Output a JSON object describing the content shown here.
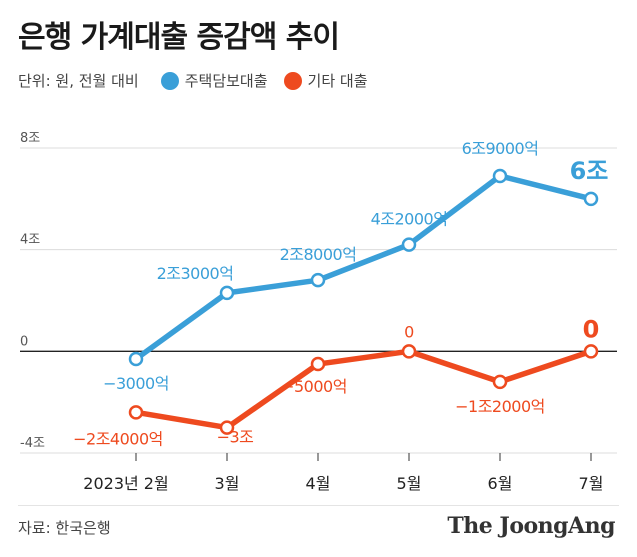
{
  "title": "은행 가계대출 증감액 추이",
  "unit_label": "단위: 원, 전월 대비",
  "legend": [
    {
      "label": "주택담보대출",
      "color": "#3a9fd8"
    },
    {
      "label": "기타 대출",
      "color": "#ee4a1f"
    }
  ],
  "source": "자료: 한국은행",
  "brand": "The JoongAng",
  "chart_data": {
    "type": "line",
    "categories": [
      "2023년 2월",
      "3월",
      "4월",
      "5월",
      "6월",
      "7월"
    ],
    "ylim": [
      -4,
      8
    ],
    "yticks": [
      8,
      4,
      0,
      -4
    ],
    "ytick_labels": [
      "8조",
      "4조",
      "0",
      "-4조"
    ],
    "grid": true,
    "series": [
      {
        "name": "주택담보대출",
        "color": "#3a9fd8",
        "values": [
          -0.3,
          2.3,
          2.8,
          4.2,
          6.9,
          6.0
        ],
        "labels": [
          "−3000억",
          "2조3000억",
          "2조8000억",
          "4조2000억",
          "6조9000억",
          "6조"
        ]
      },
      {
        "name": "기타 대출",
        "color": "#ee4a1f",
        "values": [
          -2.4,
          -3.0,
          -0.5,
          0.0,
          -1.2,
          0.0
        ],
        "labels": [
          "−2조4000억",
          "−3조",
          "−5000억",
          "0",
          "−1조2000억",
          "0"
        ]
      }
    ]
  }
}
